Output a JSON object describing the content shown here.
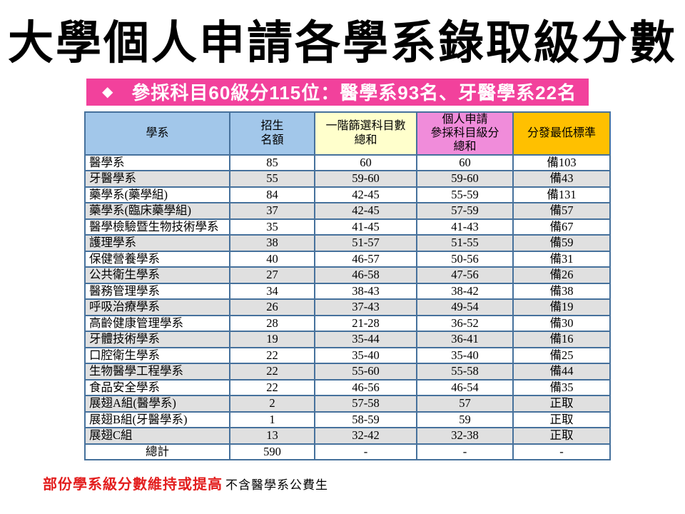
{
  "title": "大學個人申請各學系錄取級分數",
  "banner": {
    "icon": "◆",
    "text": "參採科目60級分115位：醫學系93名、牙醫學系22名",
    "bg_color": "#F2419C",
    "text_color": "#FFFFFF"
  },
  "table": {
    "columns": [
      {
        "label": "學系",
        "bg": "#A2C7EA"
      },
      {
        "label": "招生\n名額",
        "bg": "#A2C7EA"
      },
      {
        "label": "一階篩選科目數\n總和",
        "bg": "#FFFFCC"
      },
      {
        "label": "個人申請\n參採科目級分\n總和",
        "bg": "#F08CDA"
      },
      {
        "label": "分發最低標準",
        "bg": "#FFC000"
      }
    ],
    "rows": [
      [
        "醫學系",
        "85",
        "60",
        "60",
        "備103"
      ],
      [
        "牙醫學系",
        "55",
        "59-60",
        "59-60",
        "備43"
      ],
      [
        "藥學系(藥學組)",
        "84",
        "42-45",
        "55-59",
        "備131"
      ],
      [
        "藥學系(臨床藥學組)",
        "37",
        "42-45",
        "57-59",
        "備57"
      ],
      [
        "醫學檢驗暨生物技術學系",
        "35",
        "41-45",
        "41-43",
        "備67"
      ],
      [
        "護理學系",
        "38",
        "51-57",
        "51-55",
        "備59"
      ],
      [
        "保健營養學系",
        "40",
        "46-57",
        "50-56",
        "備31"
      ],
      [
        "公共衛生學系",
        "27",
        "46-58",
        "47-56",
        "備26"
      ],
      [
        "醫務管理學系",
        "34",
        "38-43",
        "38-42",
        "備38"
      ],
      [
        "呼吸治療學系",
        "26",
        "37-43",
        "49-54",
        "備19"
      ],
      [
        "高齡健康管理學系",
        "28",
        "21-28",
        "36-52",
        "備30"
      ],
      [
        "牙體技術學系",
        "19",
        "35-44",
        "36-41",
        "備16"
      ],
      [
        "口腔衛生學系",
        "22",
        "35-40",
        "35-40",
        "備25"
      ],
      [
        "生物醫學工程學系",
        "22",
        "55-60",
        "55-58",
        "備44"
      ],
      [
        "食品安全學系",
        "22",
        "46-56",
        "46-54",
        "備35"
      ],
      [
        "展翅A組(醫學系)",
        "2",
        "57-58",
        "57",
        "正取"
      ],
      [
        "展翅B組(牙醫學系)",
        "1",
        "58-59",
        "59",
        "正取"
      ],
      [
        "展翅C組",
        "13",
        "32-42",
        "32-38",
        "正取"
      ],
      [
        "總計",
        "590",
        "-",
        "-",
        "-"
      ]
    ],
    "stripe_color": "#E0E0E0",
    "border_color": "#46719C"
  },
  "footer": {
    "highlight": "部份學系級分數維持或提高",
    "highlight_color": "#E31E1E",
    "note": "不含醫學系公費生"
  }
}
